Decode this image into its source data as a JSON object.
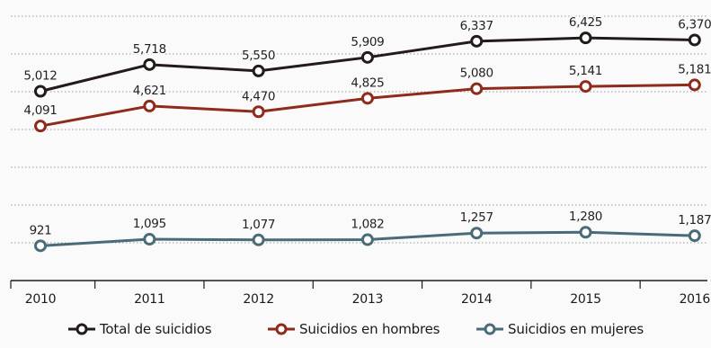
{
  "chart_data": {
    "type": "line",
    "title": "",
    "xlabel": "",
    "ylabel": "",
    "x": [
      "2010",
      "2011",
      "2012",
      "2013",
      "2014",
      "2015",
      "2016"
    ],
    "ylim": [
      0,
      7000
    ],
    "grid": true,
    "legend_position": "bottom",
    "series": [
      {
        "name": "Total de suicidios",
        "color": "#231a1a",
        "values": [
          5012,
          5718,
          5550,
          5909,
          6337,
          6425,
          6370
        ],
        "labels": [
          "5,012",
          "5,718",
          "5,550",
          "5,909",
          "6,337",
          "6,425",
          "6,370"
        ]
      },
      {
        "name": "Suicidios en hombres",
        "color": "#8f2b1c",
        "values": [
          4091,
          4621,
          4470,
          4825,
          5080,
          5141,
          5181
        ],
        "labels": [
          "4,091",
          "4,621",
          "4,470",
          "4,825",
          "5,080",
          "5,141",
          "5,181"
        ]
      },
      {
        "name": "Suicidios en mujeres",
        "color": "#4a6b78",
        "values": [
          921,
          1095,
          1077,
          1082,
          1257,
          1280,
          1187
        ],
        "labels": [
          "921",
          "1,095",
          "1,077",
          "1,082",
          "1,257",
          "1,280",
          "1,187"
        ]
      }
    ]
  }
}
